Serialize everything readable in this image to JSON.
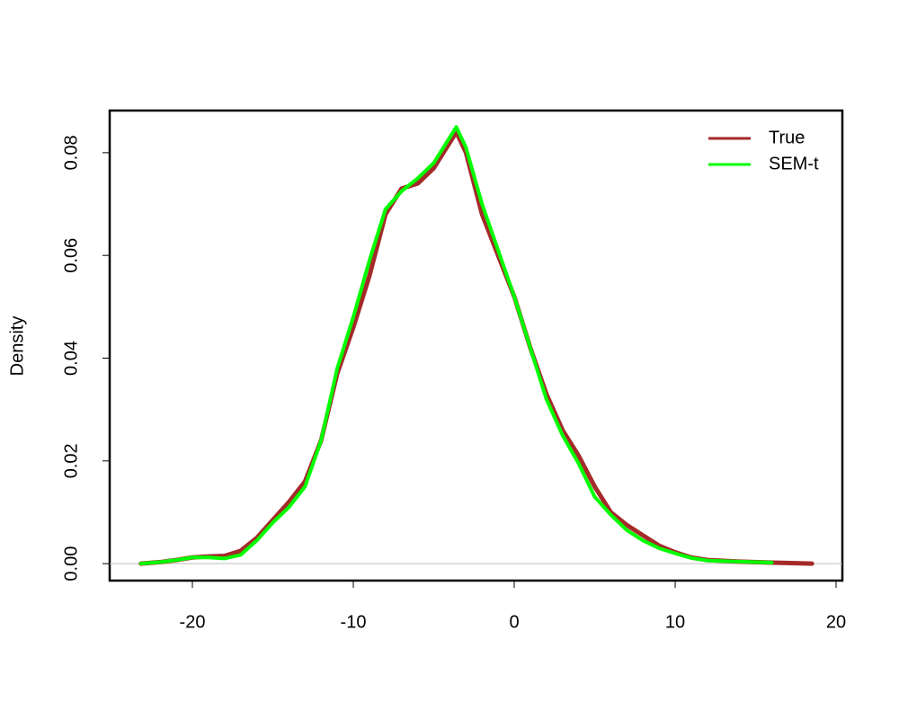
{
  "chart_data": {
    "type": "line",
    "y_label": "Density",
    "x": [
      -23.2,
      -22,
      -21,
      -20,
      -19,
      -18,
      -17,
      -16,
      -15,
      -14,
      -13,
      -12,
      -11,
      -10,
      -9,
      -8,
      -7,
      -6,
      -5,
      -4,
      -3.6,
      -3,
      -2,
      -1,
      0,
      1,
      2,
      3,
      4,
      5,
      6,
      7,
      8,
      9,
      10,
      11,
      12,
      14,
      16,
      18.5
    ],
    "series": [
      {
        "name": "True",
        "color": "#a52a2a",
        "values": [
          0.0,
          0.0003,
          0.0007,
          0.0012,
          0.0014,
          0.0015,
          0.0025,
          0.005,
          0.0085,
          0.012,
          0.016,
          0.024,
          0.037,
          0.046,
          0.056,
          0.068,
          0.073,
          0.074,
          0.077,
          0.082,
          0.084,
          0.08,
          0.068,
          0.06,
          0.052,
          0.042,
          0.033,
          0.026,
          0.021,
          0.015,
          0.01,
          0.0075,
          0.0055,
          0.0035,
          0.0022,
          0.0012,
          0.0007,
          0.0004,
          0.0002,
          0.0
        ]
      },
      {
        "name": "SEM-t",
        "color": "#00ff00",
        "values": [
          0.0,
          0.0003,
          0.0007,
          0.0012,
          0.0012,
          0.001,
          0.0017,
          0.0045,
          0.008,
          0.011,
          0.015,
          0.024,
          0.038,
          0.048,
          0.059,
          0.069,
          0.0725,
          0.075,
          0.078,
          0.083,
          0.085,
          0.081,
          0.07,
          0.061,
          0.052,
          0.042,
          0.032,
          0.025,
          0.0195,
          0.013,
          0.0095,
          0.0065,
          0.0045,
          0.003,
          0.002,
          0.0011,
          0.0006,
          0.0004,
          0.0002,
          null
        ]
      }
    ],
    "xlim": [
      -25.14,
      20.39
    ],
    "ylim": [
      -0.0033,
      0.0882
    ],
    "xticks": [
      -20,
      -10,
      0,
      10,
      20
    ],
    "yticks": [
      {
        "value": 0,
        "label": "0.00"
      },
      0.02,
      0.04,
      0.06,
      0.08
    ],
    "hline": 0,
    "legend": "top-right"
  }
}
